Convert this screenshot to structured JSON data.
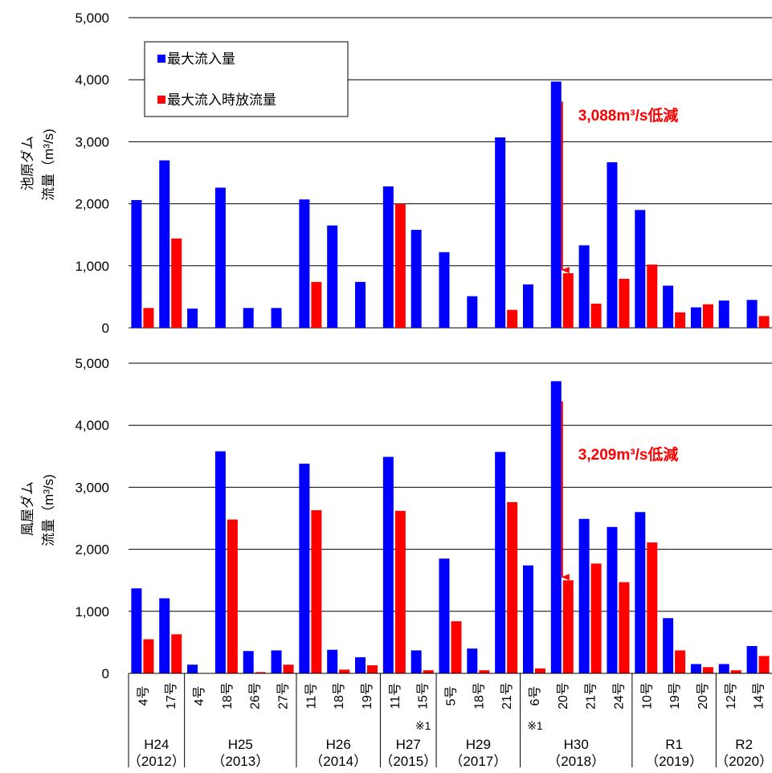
{
  "chart_data": {
    "type": "bar",
    "legend": {
      "placement": "top-left",
      "entries": [
        {
          "label": "最大流入量",
          "color": "#0000ff"
        },
        {
          "label": "最大流入時放流量",
          "color": "#ff0000"
        }
      ]
    },
    "categories": [
      "4号",
      "17号",
      "4号",
      "18号",
      "26号",
      "27号",
      "11号",
      "18号",
      "19号",
      "11号",
      "15号",
      "5号",
      "18号",
      "21号",
      "6号",
      "20号",
      "21号",
      "24号",
      "10号",
      "19号",
      "20号",
      "12号",
      "14号"
    ],
    "category_notes": {
      "10": "※1",
      "14": "※1"
    },
    "groups": [
      {
        "label": "H24",
        "year": "（2012）",
        "count": 2
      },
      {
        "label": "H25",
        "year": "（2013）",
        "count": 4
      },
      {
        "label": "H26",
        "year": "（2014）",
        "count": 3
      },
      {
        "label": "H27",
        "year": "（2015）",
        "count": 2
      },
      {
        "label": "H29",
        "year": "（2017）",
        "count": 3
      },
      {
        "label": "H30",
        "year": "（2018）",
        "count": 4
      },
      {
        "label": "R1",
        "year": "（2019）",
        "count": 3
      },
      {
        "label": "R2",
        "year": "（2020）",
        "count": 2
      }
    ],
    "panels": [
      {
        "ylabel_line1": "池原ダム",
        "ylabel_line2": "流量（m³/s)",
        "ylim": [
          0,
          5000
        ],
        "yticks": [
          "0",
          "1,000",
          "2,000",
          "3,000",
          "4,000",
          "5,000"
        ],
        "grid": true,
        "series": [
          {
            "name": "最大流入量",
            "color": "#0000ff",
            "values": [
              2060,
              2700,
              310,
              2260,
              320,
              320,
              2070,
              1650,
              740,
              2280,
              1580,
              1220,
              510,
              3070,
              700,
              3970,
              1330,
              2670,
              1900,
              680,
              330,
              440,
              450
            ]
          },
          {
            "name": "最大流入時放流量",
            "color": "#ff0000",
            "values": [
              320,
              1440,
              0,
              0,
              0,
              0,
              740,
              0,
              0,
              2000,
              0,
              0,
              0,
              290,
              0,
              880,
              390,
              790,
              1020,
              250,
              380,
              0,
              190
            ]
          }
        ],
        "annotation": {
          "text": "3,088m³/s低減",
          "category_index": 15,
          "from": 3970,
          "to": 880
        }
      },
      {
        "ylabel_line1": "風屋ダム",
        "ylabel_line2": "流量（m³/s)",
        "ylim": [
          0,
          5000
        ],
        "yticks": [
          "0",
          "1,000",
          "2,000",
          "3,000",
          "4,000",
          "5,000"
        ],
        "grid": true,
        "series": [
          {
            "name": "最大流入量",
            "color": "#0000ff",
            "values": [
              1370,
              1210,
              140,
              3580,
              360,
              370,
              3380,
              380,
              260,
              3490,
              370,
              1850,
              400,
              3570,
              1740,
              4710,
              2490,
              2360,
              2600,
              890,
              150,
              150,
              440
            ]
          },
          {
            "name": "最大流入時放流量",
            "color": "#ff0000",
            "values": [
              550,
              630,
              0,
              2480,
              20,
              140,
              2630,
              60,
              130,
              2620,
              50,
              840,
              50,
              2760,
              80,
              1500,
              1770,
              1470,
              2110,
              370,
              100,
              50,
              280
            ]
          }
        ],
        "annotation": {
          "text": "3,209m³/s低減",
          "category_index": 15,
          "from": 4710,
          "to": 1500
        }
      }
    ]
  }
}
